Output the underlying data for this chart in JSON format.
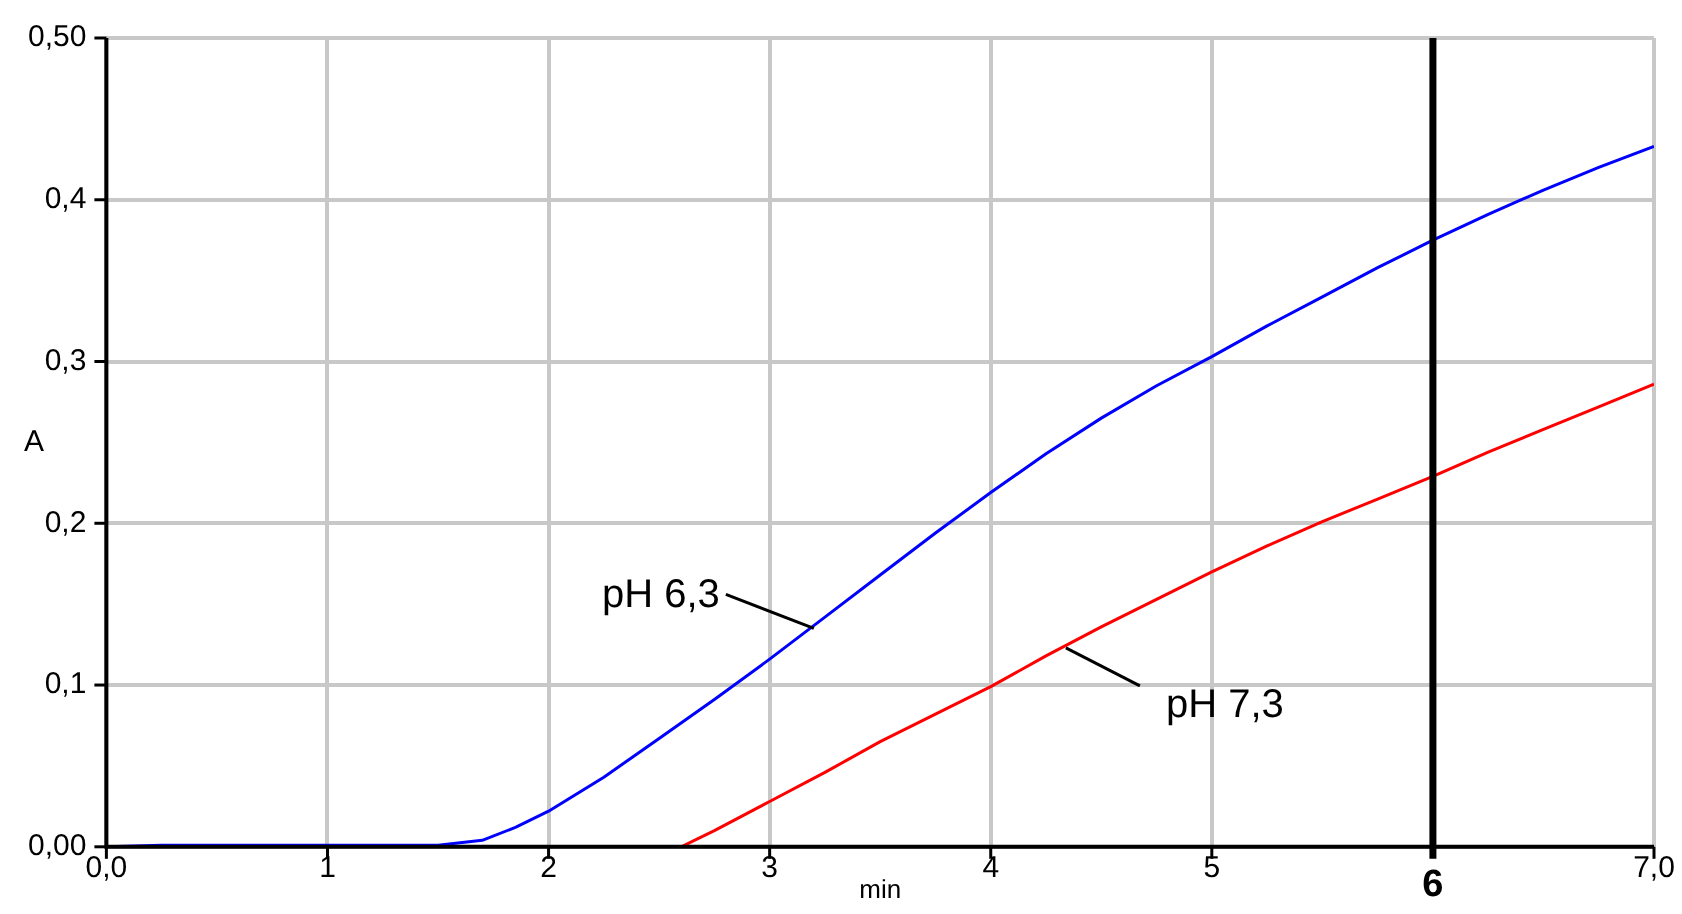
{
  "chart_data": {
    "type": "line",
    "xlabel": "min",
    "ylabel": "A",
    "xlim": [
      0,
      7
    ],
    "ylim": [
      0,
      0.5
    ],
    "xticks": [
      {
        "value": 0,
        "label": "0,0"
      },
      1,
      2,
      3,
      4,
      5,
      {
        "value": 7,
        "label": "7,0"
      }
    ],
    "yticks": [
      {
        "value": 0,
        "label": "0,00"
      },
      {
        "value": 0.1,
        "label": "0,1"
      },
      {
        "value": 0.2,
        "label": "0,2"
      },
      {
        "value": 0.3,
        "label": "0,3"
      },
      {
        "value": 0.4,
        "label": "0,4"
      },
      {
        "value": 0.5,
        "label": "0,50"
      }
    ],
    "grid": true,
    "legend": false,
    "marker": "none",
    "line_style": "solid",
    "series": [
      {
        "color": "#0000ff",
        "x": [
          0,
          0.25,
          1.5,
          1.7,
          1.85,
          2,
          2.25,
          2.5,
          2.75,
          3,
          3.25,
          3.5,
          3.75,
          4,
          4.25,
          4.5,
          4.75,
          5,
          5.25,
          5.5,
          5.75,
          6,
          6.25,
          6.5,
          6.75,
          7
        ],
        "values": [
          0,
          0.001,
          0.001,
          0.004,
          0.012,
          0.022,
          0.043,
          0.067,
          0.091,
          0.116,
          0.142,
          0.168,
          0.194,
          0.219,
          0.243,
          0.265,
          0.285,
          0.303,
          0.322,
          0.34,
          0.358,
          0.375,
          0.391,
          0.406,
          0.42,
          0.433
        ]
      },
      {
        "color": "#ff0000",
        "x": [
          2.6,
          2.75,
          3,
          3.25,
          3.5,
          3.75,
          4,
          4.25,
          4.5,
          4.75,
          5,
          5.25,
          5.5,
          5.75,
          6,
          6.25,
          6.5,
          6.75,
          7
        ],
        "values": [
          0,
          0.01,
          0.028,
          0.046,
          0.065,
          0.082,
          0.099,
          0.118,
          0.136,
          0.153,
          0.17,
          0.186,
          0.201,
          0.215,
          0.229,
          0.244,
          0.258,
          0.272,
          0.286
        ]
      }
    ],
    "annotations": [
      {
        "text": "pH 6,3",
        "x": 3.2,
        "y": 0.135
      },
      {
        "text": "pH 7,3",
        "x": 4.34,
        "y": 0.123
      }
    ],
    "ref_lines": [
      {
        "axis": "x",
        "value": 6,
        "label": "6",
        "color": "#000000"
      }
    ]
  }
}
